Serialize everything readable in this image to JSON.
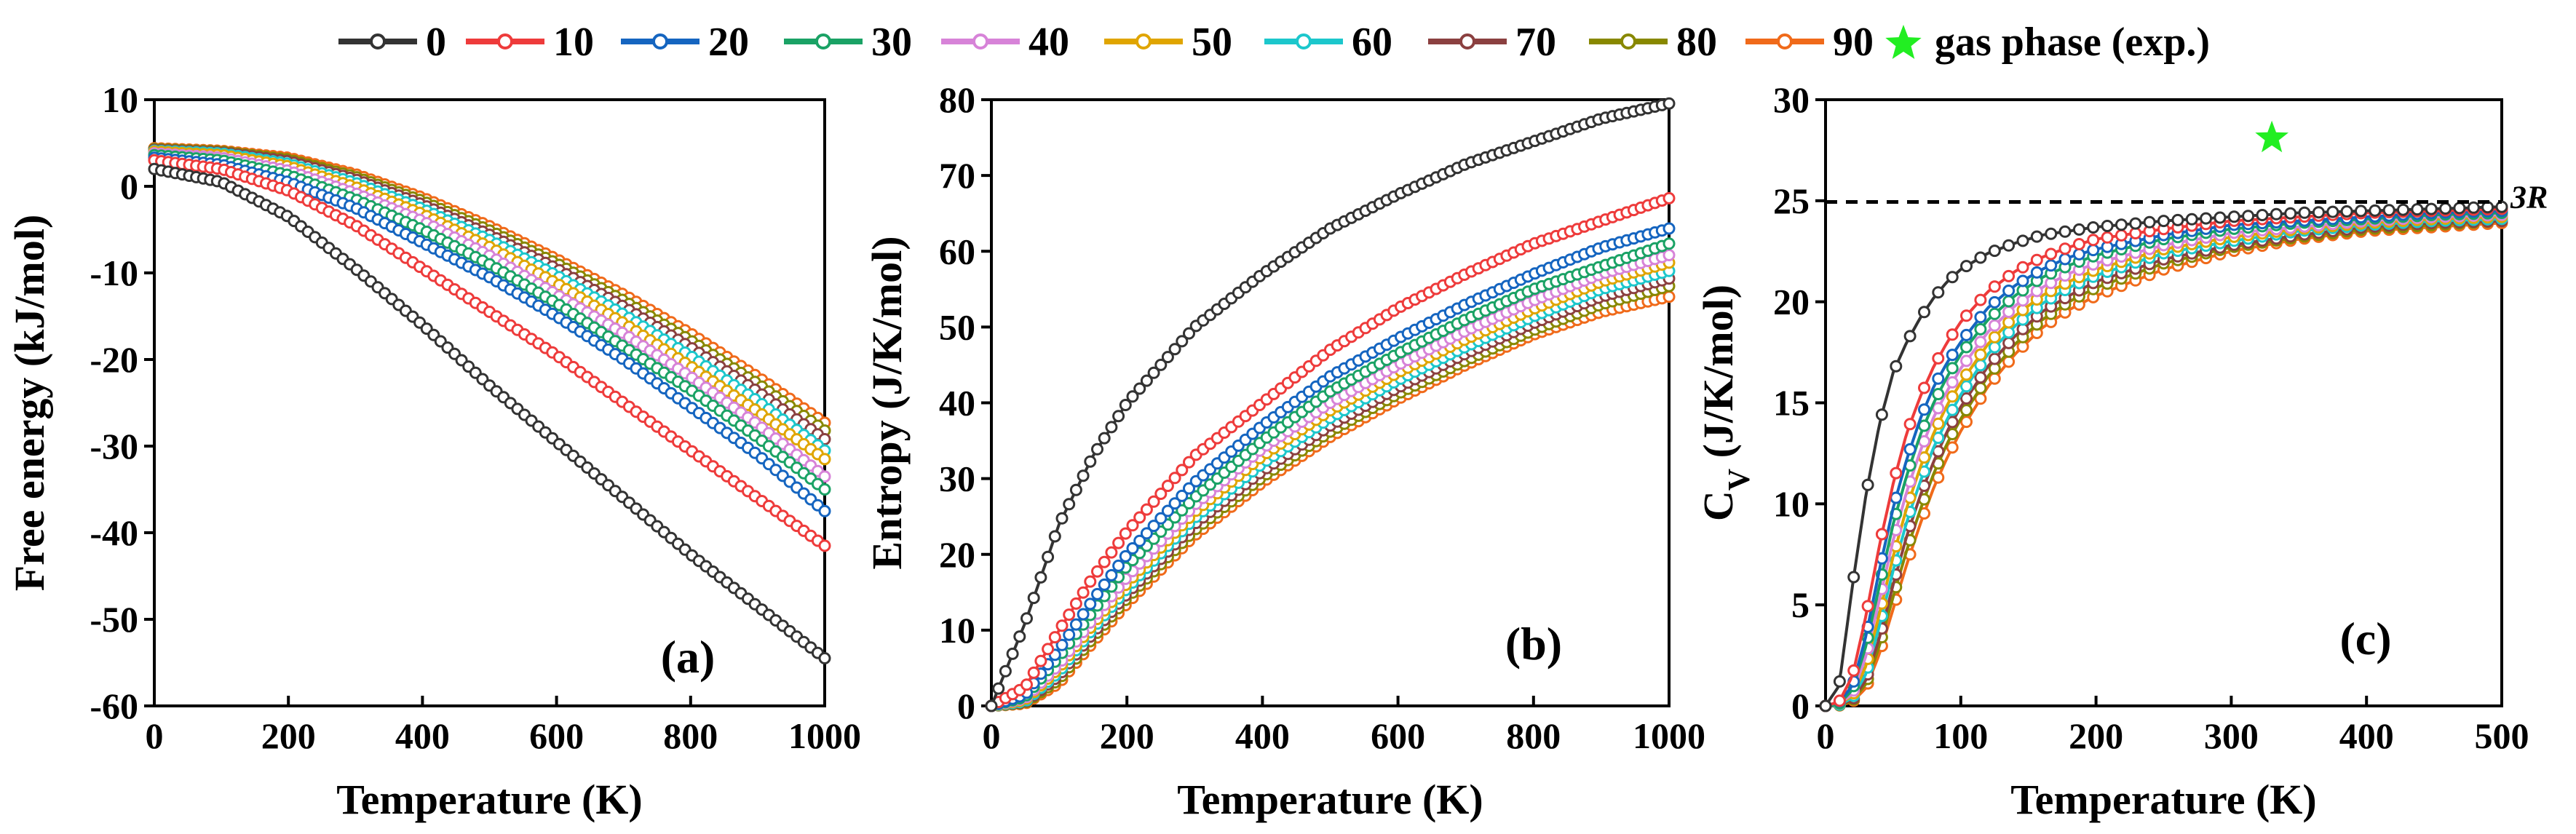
{
  "legend": {
    "entries": [
      {
        "label": "0",
        "color": "#333333"
      },
      {
        "label": "10",
        "color": "#ee3b3b"
      },
      {
        "label": "20",
        "color": "#1565c0"
      },
      {
        "label": "30",
        "color": "#1aa265"
      },
      {
        "label": "40",
        "color": "#d783d8"
      },
      {
        "label": "50",
        "color": "#e0a500"
      },
      {
        "label": "60",
        "color": "#1cc7cc"
      },
      {
        "label": "70",
        "color": "#8b4040"
      },
      {
        "label": "80",
        "color": "#888800"
      },
      {
        "label": "90",
        "color": "#f06a1a"
      }
    ],
    "gas_label": "gas phase (exp.)",
    "gas_color": "#22ee22"
  },
  "chart_data": [
    {
      "type": "line",
      "panel": "(a)",
      "title": "",
      "xlabel": "Temperature (K)",
      "ylabel": "Free energy (kJ/mol)",
      "xlim": [
        0,
        1000
      ],
      "ylim": [
        -60,
        10
      ],
      "xticks": [
        0,
        200,
        400,
        600,
        800,
        1000
      ],
      "yticks": [
        -60,
        -50,
        -40,
        -30,
        -20,
        -10,
        0,
        10
      ],
      "x": [
        0,
        100,
        200,
        300,
        400,
        500,
        600,
        700,
        800,
        900,
        1000
      ],
      "series": [
        {
          "name": "0",
          "values": [
            2.0,
            0.5,
            -3.5,
            -9.5,
            -16.0,
            -23.0,
            -29.5,
            -36.0,
            -42.5,
            -48.5,
            -54.5
          ]
        },
        {
          "name": "10",
          "values": [
            3.0,
            2.0,
            -0.5,
            -4.5,
            -9.5,
            -14.5,
            -19.5,
            -25.0,
            -30.5,
            -36.0,
            -41.5
          ]
        },
        {
          "name": "20",
          "values": [
            3.3,
            2.5,
            0.5,
            -2.5,
            -6.5,
            -10.5,
            -15.0,
            -20.0,
            -25.5,
            -31.0,
            -37.5
          ]
        },
        {
          "name": "30",
          "values": [
            3.6,
            3.0,
            1.3,
            -1.5,
            -5.0,
            -9.0,
            -13.5,
            -18.5,
            -23.5,
            -29.0,
            -35.0
          ]
        },
        {
          "name": "40",
          "values": [
            3.8,
            3.3,
            1.8,
            -0.8,
            -4.0,
            -8.0,
            -12.5,
            -17.0,
            -22.0,
            -27.5,
            -33.5
          ]
        },
        {
          "name": "50",
          "values": [
            4.0,
            3.6,
            2.3,
            -0.1,
            -3.2,
            -7.0,
            -11.2,
            -15.8,
            -20.8,
            -26.0,
            -31.5
          ]
        },
        {
          "name": "60",
          "values": [
            4.1,
            3.8,
            2.6,
            0.4,
            -2.6,
            -6.2,
            -10.3,
            -14.8,
            -19.6,
            -24.8,
            -30.5
          ]
        },
        {
          "name": "70",
          "values": [
            4.2,
            3.9,
            2.9,
            0.8,
            -2.1,
            -5.6,
            -9.5,
            -13.9,
            -18.6,
            -23.7,
            -29.2
          ]
        },
        {
          "name": "80",
          "values": [
            4.3,
            4.0,
            3.1,
            1.1,
            -1.7,
            -5.1,
            -8.9,
            -13.2,
            -17.8,
            -22.8,
            -28.2
          ]
        },
        {
          "name": "90",
          "values": [
            4.4,
            4.1,
            3.3,
            1.4,
            -1.3,
            -4.6,
            -8.4,
            -12.5,
            -17.0,
            -22.0,
            -27.3
          ]
        }
      ]
    },
    {
      "type": "line",
      "panel": "(b)",
      "title": "",
      "xlabel": "Temperature (K)",
      "ylabel": "Entropy (J/K/mol)",
      "xlim": [
        0,
        1000
      ],
      "ylim": [
        0,
        80
      ],
      "xticks": [
        0,
        200,
        400,
        600,
        800,
        1000
      ],
      "yticks": [
        0,
        10,
        20,
        30,
        40,
        50,
        60,
        70,
        80
      ],
      "x": [
        0,
        50,
        100,
        150,
        200,
        300,
        400,
        500,
        600,
        700,
        800,
        900,
        1000
      ],
      "series": [
        {
          "name": "0",
          "values": [
            0,
            11,
            24,
            33,
            40,
            50,
            57,
            63,
            67.5,
            71.5,
            74.5,
            77.5,
            79.5
          ]
        },
        {
          "name": "10",
          "values": [
            0,
            2.5,
            10,
            17,
            23,
            33,
            40,
            47,
            52.5,
            57,
            61,
            64,
            67
          ]
        },
        {
          "name": "20",
          "values": [
            0,
            1.5,
            7.5,
            14,
            20,
            29.5,
            37,
            43.5,
            48.5,
            53,
            57,
            60.5,
            63
          ]
        },
        {
          "name": "30",
          "values": [
            0,
            1.2,
            6.5,
            12.5,
            18.5,
            27.5,
            35,
            41.5,
            46.5,
            51,
            55,
            58,
            61
          ]
        },
        {
          "name": "40",
          "values": [
            0,
            1.0,
            5.5,
            11.5,
            17,
            26.5,
            34,
            40,
            45,
            49.5,
            53.5,
            57,
            59.5
          ]
        },
        {
          "name": "50",
          "values": [
            0,
            0.8,
            5.0,
            10.8,
            16.2,
            25.6,
            33,
            39,
            44,
            48.4,
            52.4,
            56,
            58.5
          ]
        },
        {
          "name": "60",
          "values": [
            0,
            0.6,
            4.5,
            10.2,
            15.5,
            24.8,
            32,
            38,
            43,
            47.4,
            51.4,
            55,
            57.4
          ]
        },
        {
          "name": "70",
          "values": [
            0,
            0.5,
            4.0,
            9.6,
            14.8,
            24,
            31,
            37,
            42,
            46.5,
            50.5,
            54,
            56.4
          ]
        },
        {
          "name": "80",
          "values": [
            0,
            0.4,
            3.5,
            9.0,
            14.2,
            23.2,
            30.2,
            36.2,
            41.2,
            45.6,
            49.6,
            53,
            55.4
          ]
        },
        {
          "name": "90",
          "values": [
            0,
            0.3,
            3.0,
            8.4,
            13.5,
            22.5,
            29.5,
            35.5,
            40.5,
            45,
            49,
            52,
            54
          ]
        }
      ]
    },
    {
      "type": "line",
      "panel": "(c)",
      "title": "",
      "xlabel": "Temperature (K)",
      "ylabel_main": "C",
      "ylabel_sub": "V",
      "ylabel_rest": " (J/K/mol)",
      "xlim": [
        0,
        500
      ],
      "ylim": [
        0,
        30
      ],
      "xticks": [
        0,
        100,
        200,
        300,
        400,
        500
      ],
      "yticks": [
        0,
        5,
        10,
        15,
        20,
        25,
        30
      ],
      "reference_line": {
        "label": "3R",
        "y": 24.94
      },
      "gas_phase_point": {
        "x": 330,
        "y": 28.1
      },
      "x": [
        0,
        10,
        20,
        30,
        40,
        50,
        60,
        70,
        80,
        90,
        100,
        120,
        140,
        160,
        180,
        200,
        250,
        300,
        350,
        400,
        450,
        500
      ],
      "series": [
        {
          "name": "0",
          "values": [
            0,
            1.0,
            6.0,
            10.5,
            14.0,
            16.5,
            18.0,
            19.2,
            20.2,
            21.0,
            21.6,
            22.4,
            22.9,
            23.3,
            23.5,
            23.7,
            24.0,
            24.2,
            24.4,
            24.5,
            24.6,
            24.7
          ]
        },
        {
          "name": "10",
          "values": [
            0,
            0.2,
            1.5,
            4.5,
            8.0,
            11.0,
            13.5,
            15.3,
            16.8,
            18.0,
            19.0,
            20.5,
            21.5,
            22.2,
            22.7,
            23.1,
            23.6,
            24.0,
            24.2,
            24.4,
            24.5,
            24.6
          ]
        },
        {
          "name": "20",
          "values": [
            0,
            0.2,
            1.0,
            3.5,
            6.8,
            9.8,
            12.2,
            14.2,
            15.8,
            17.0,
            18.0,
            19.7,
            20.8,
            21.6,
            22.2,
            22.6,
            23.3,
            23.8,
            24.0,
            24.2,
            24.4,
            24.5
          ]
        },
        {
          "name": "30",
          "values": [
            0,
            0.1,
            0.8,
            3.0,
            6.0,
            9.0,
            11.4,
            13.4,
            15.0,
            16.3,
            17.4,
            19.1,
            20.3,
            21.2,
            21.8,
            22.3,
            23.1,
            23.6,
            23.9,
            24.1,
            24.3,
            24.4
          ]
        },
        {
          "name": "40",
          "values": [
            0,
            0.1,
            0.6,
            2.5,
            5.3,
            8.2,
            10.6,
            12.6,
            14.3,
            15.6,
            16.7,
            18.5,
            19.8,
            20.7,
            21.4,
            21.9,
            22.8,
            23.4,
            23.7,
            24.0,
            24.2,
            24.3
          ]
        },
        {
          "name": "50",
          "values": [
            0,
            0.1,
            0.5,
            2.0,
            4.6,
            7.4,
            9.8,
            11.8,
            13.5,
            14.9,
            16.0,
            17.9,
            19.3,
            20.3,
            21.0,
            21.6,
            22.6,
            23.2,
            23.6,
            23.9,
            24.1,
            24.2
          ]
        },
        {
          "name": "60",
          "values": [
            0,
            0.05,
            0.4,
            1.6,
            4.0,
            6.7,
            9.1,
            11.1,
            12.8,
            14.2,
            15.4,
            17.4,
            18.8,
            19.9,
            20.7,
            21.3,
            22.4,
            23.0,
            23.5,
            23.8,
            24.0,
            24.1
          ]
        },
        {
          "name": "70",
          "values": [
            0,
            0.05,
            0.3,
            1.3,
            3.4,
            6.0,
            8.4,
            10.4,
            12.1,
            13.6,
            14.8,
            16.8,
            18.3,
            19.5,
            20.3,
            21.0,
            22.1,
            22.8,
            23.3,
            23.7,
            23.9,
            24.0
          ]
        },
        {
          "name": "80",
          "values": [
            0,
            0.03,
            0.25,
            1.1,
            3.0,
            5.4,
            7.7,
            9.7,
            11.5,
            13.0,
            14.2,
            16.3,
            17.9,
            19.1,
            20.0,
            20.7,
            21.9,
            22.7,
            23.2,
            23.6,
            23.8,
            24.0
          ]
        },
        {
          "name": "90",
          "values": [
            0,
            0.02,
            0.2,
            0.9,
            2.6,
            4.8,
            7.0,
            9.0,
            10.8,
            12.3,
            13.6,
            15.8,
            17.4,
            18.7,
            19.6,
            20.3,
            21.6,
            22.5,
            23.1,
            23.5,
            23.7,
            23.9
          ]
        }
      ]
    }
  ]
}
